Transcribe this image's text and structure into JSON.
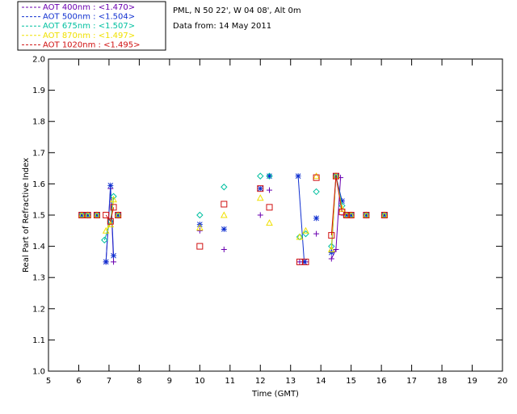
{
  "header": {
    "site": "PML, N 50 22', W 04 08', Alt 0m",
    "date": "Data from: 14 May 2011"
  },
  "legend": [
    {
      "label": "AOT  400nm : <1.470>",
      "color": "#6a00b0"
    },
    {
      "label": "AOT  500nm : <1.504>",
      "color": "#1030d0"
    },
    {
      "label": "AOT  675nm : <1.507>",
      "color": "#00c0a0"
    },
    {
      "label": "AOT  870nm : <1.497>",
      "color": "#f0e000"
    },
    {
      "label": "AOT 1020nm : <1.495>",
      "color": "#d01010"
    }
  ],
  "chart_data": {
    "type": "scatter",
    "xlabel": "Time (GMT)",
    "ylabel": "Real Part of Refractive Index",
    "xlim": [
      5,
      20
    ],
    "ylim": [
      1.0,
      2.0
    ],
    "x_ticks": [
      "5",
      "6",
      "7",
      "8",
      "9",
      "10",
      "11",
      "12",
      "13",
      "14",
      "15",
      "16",
      "17",
      "18",
      "19",
      "20"
    ],
    "y_ticks": [
      "1.0",
      "1.1",
      "1.2",
      "1.3",
      "1.4",
      "1.5",
      "1.6",
      "1.7",
      "1.8",
      "1.9",
      "2.0"
    ],
    "series": [
      {
        "name": "AOT  400nm : <1.470>",
        "color": "#6a00b0",
        "marker": "plus",
        "points": [
          [
            6.1,
            1.5
          ],
          [
            6.3,
            1.5
          ],
          [
            6.6,
            1.5
          ],
          [
            6.9,
            1.35
          ],
          [
            7.05,
            1.585
          ],
          [
            7.15,
            1.35
          ],
          [
            7.3,
            1.5
          ],
          [
            10.0,
            1.45
          ],
          [
            10.8,
            1.39
          ],
          [
            12.0,
            1.5
          ],
          [
            12.3,
            1.58
          ],
          [
            13.3,
            1.35
          ],
          [
            13.5,
            1.35
          ],
          [
            13.85,
            1.44
          ],
          [
            14.35,
            1.36
          ],
          [
            14.5,
            1.39
          ],
          [
            14.65,
            1.62
          ],
          [
            14.75,
            1.5
          ],
          [
            15.0,
            1.5
          ],
          [
            15.5,
            1.5
          ],
          [
            16.1,
            1.5
          ]
        ],
        "lines": [
          [
            [
              6.9,
              1.35
            ],
            [
              7.05,
              1.585
            ],
            [
              7.15,
              1.35
            ]
          ],
          [
            [
              14.35,
              1.36
            ],
            [
              14.5,
              1.39
            ],
            [
              14.65,
              1.62
            ]
          ]
        ]
      },
      {
        "name": "AOT  500nm : <1.504>",
        "color": "#1030d0",
        "marker": "asterisk",
        "points": [
          [
            6.1,
            1.5
          ],
          [
            6.3,
            1.5
          ],
          [
            6.6,
            1.5
          ],
          [
            6.9,
            1.35
          ],
          [
            7.05,
            1.595
          ],
          [
            7.15,
            1.37
          ],
          [
            7.3,
            1.5
          ],
          [
            10.0,
            1.47
          ],
          [
            10.8,
            1.455
          ],
          [
            12.0,
            1.585
          ],
          [
            12.3,
            1.625
          ],
          [
            13.25,
            1.625
          ],
          [
            13.45,
            1.35
          ],
          [
            13.85,
            1.49
          ],
          [
            14.35,
            1.38
          ],
          [
            14.5,
            1.625
          ],
          [
            14.7,
            1.545
          ],
          [
            14.85,
            1.5
          ],
          [
            15.0,
            1.5
          ],
          [
            15.5,
            1.5
          ],
          [
            16.1,
            1.5
          ]
        ],
        "lines": [
          [
            [
              6.9,
              1.35
            ],
            [
              7.05,
              1.595
            ],
            [
              7.15,
              1.37
            ]
          ],
          [
            [
              13.25,
              1.625
            ],
            [
              13.45,
              1.35
            ]
          ],
          [
            [
              14.35,
              1.38
            ],
            [
              14.5,
              1.625
            ],
            [
              14.7,
              1.545
            ]
          ]
        ]
      },
      {
        "name": "AOT  675nm : <1.507>",
        "color": "#00c0a0",
        "marker": "diamond",
        "points": [
          [
            6.1,
            1.5
          ],
          [
            6.3,
            1.5
          ],
          [
            6.6,
            1.5
          ],
          [
            6.85,
            1.42
          ],
          [
            7.05,
            1.48
          ],
          [
            7.15,
            1.56
          ],
          [
            7.3,
            1.5
          ],
          [
            10.0,
            1.5
          ],
          [
            10.8,
            1.59
          ],
          [
            12.0,
            1.625
          ],
          [
            12.3,
            1.625
          ],
          [
            13.3,
            1.43
          ],
          [
            13.5,
            1.44
          ],
          [
            13.85,
            1.575
          ],
          [
            14.35,
            1.4
          ],
          [
            14.5,
            1.625
          ],
          [
            14.7,
            1.53
          ],
          [
            14.85,
            1.5
          ],
          [
            15.0,
            1.5
          ],
          [
            15.5,
            1.5
          ],
          [
            16.1,
            1.5
          ]
        ],
        "lines": [
          [
            [
              6.85,
              1.42
            ],
            [
              7.05,
              1.48
            ],
            [
              7.15,
              1.56
            ]
          ],
          [
            [
              14.35,
              1.4
            ],
            [
              14.5,
              1.625
            ],
            [
              14.7,
              1.53
            ]
          ]
        ]
      },
      {
        "name": "AOT  870nm : <1.497>",
        "color": "#f0e000",
        "marker": "triangle",
        "points": [
          [
            6.1,
            1.5
          ],
          [
            6.3,
            1.5
          ],
          [
            6.6,
            1.5
          ],
          [
            6.9,
            1.45
          ],
          [
            7.05,
            1.47
          ],
          [
            7.15,
            1.55
          ],
          [
            7.3,
            1.5
          ],
          [
            10.0,
            1.46
          ],
          [
            10.8,
            1.5
          ],
          [
            12.0,
            1.555
          ],
          [
            12.3,
            1.475
          ],
          [
            13.3,
            1.43
          ],
          [
            13.5,
            1.45
          ],
          [
            13.85,
            1.625
          ],
          [
            14.35,
            1.39
          ],
          [
            14.5,
            1.625
          ],
          [
            14.7,
            1.52
          ],
          [
            14.85,
            1.5
          ],
          [
            15.0,
            1.5
          ],
          [
            15.5,
            1.5
          ],
          [
            16.1,
            1.5
          ]
        ],
        "lines": [
          [
            [
              6.9,
              1.45
            ],
            [
              7.05,
              1.47
            ],
            [
              7.15,
              1.55
            ]
          ],
          [
            [
              14.35,
              1.39
            ],
            [
              14.5,
              1.625
            ],
            [
              14.7,
              1.52
            ]
          ]
        ]
      },
      {
        "name": "AOT 1020nm : <1.495>",
        "color": "#d01010",
        "marker": "square",
        "points": [
          [
            6.1,
            1.5
          ],
          [
            6.3,
            1.5
          ],
          [
            6.6,
            1.5
          ],
          [
            6.9,
            1.5
          ],
          [
            7.05,
            1.48
          ],
          [
            7.15,
            1.525
          ],
          [
            7.3,
            1.5
          ],
          [
            10.0,
            1.4
          ],
          [
            10.8,
            1.535
          ],
          [
            12.0,
            1.585
          ],
          [
            12.3,
            1.525
          ],
          [
            13.3,
            1.35
          ],
          [
            13.5,
            1.35
          ],
          [
            13.85,
            1.62
          ],
          [
            14.35,
            1.435
          ],
          [
            14.5,
            1.625
          ],
          [
            14.7,
            1.51
          ],
          [
            14.85,
            1.5
          ],
          [
            15.0,
            1.5
          ],
          [
            15.5,
            1.5
          ],
          [
            16.1,
            1.5
          ]
        ],
        "lines": [
          [
            [
              6.9,
              1.5
            ],
            [
              7.05,
              1.48
            ],
            [
              7.15,
              1.525
            ]
          ],
          [
            [
              14.35,
              1.435
            ],
            [
              14.5,
              1.625
            ],
            [
              14.7,
              1.51
            ]
          ]
        ]
      }
    ]
  }
}
